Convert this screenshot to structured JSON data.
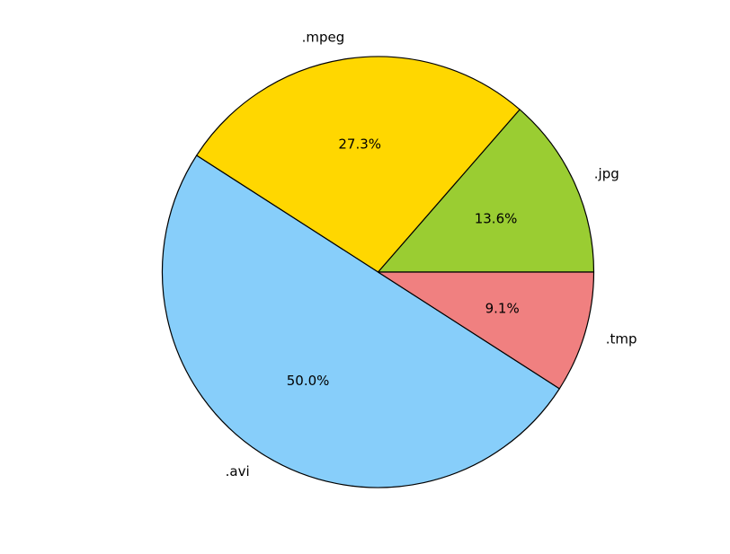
{
  "chart_data": {
    "type": "pie",
    "title": "",
    "categories": [
      ".jpg",
      ".mpeg",
      ".avi",
      ".tmp"
    ],
    "values": [
      13.6,
      27.3,
      50.0,
      9.1
    ],
    "pct_labels": [
      "13.6%",
      "27.3%",
      "50.0%",
      "9.1%"
    ],
    "colors": [
      "#9acd32",
      "#ffd700",
      "#87cefa",
      "#f08080"
    ],
    "start_angle_deg": 0,
    "direction": "counterclockwise",
    "edge_color": "#000000"
  }
}
